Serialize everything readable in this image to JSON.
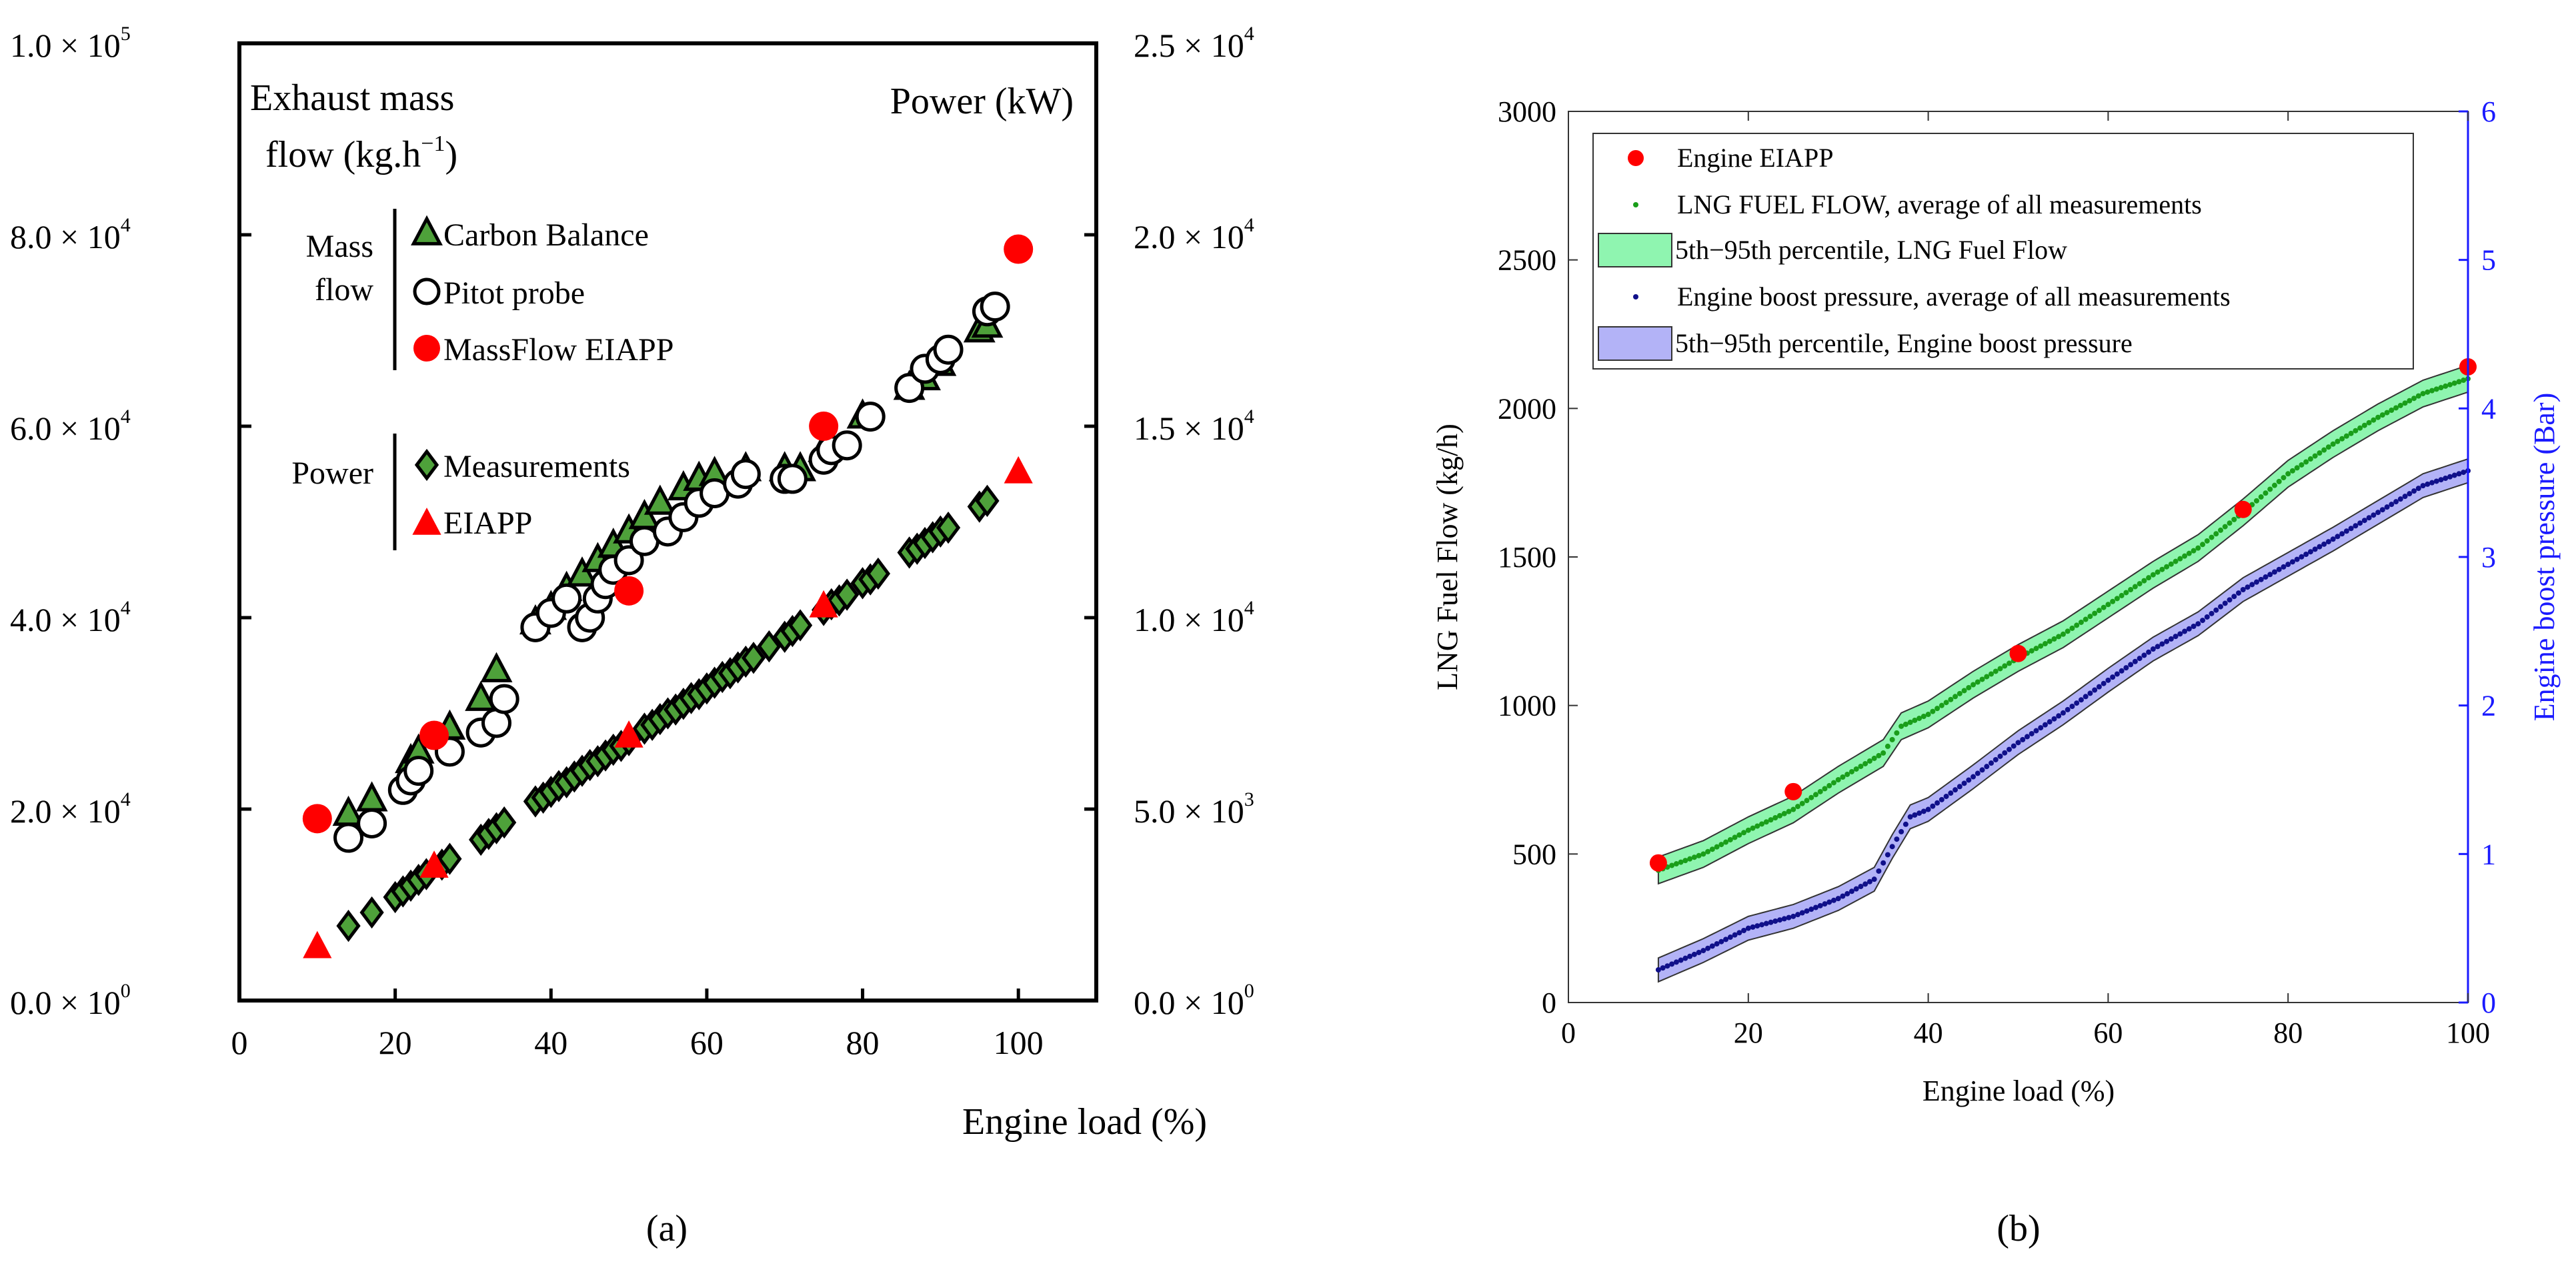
{
  "chart_data": [
    {
      "type": "scatter",
      "panel_label": "(a)",
      "xlabel": "Engine load  (%)",
      "ylabel_left": [
        "Exhaust mass",
        "flow (kg.h",
        "−1",
        ")"
      ],
      "ylabel_right": "Power (kW)",
      "xlim": [
        0,
        110
      ],
      "xticks": [
        0,
        20,
        40,
        60,
        80,
        100
      ],
      "ylim_left": [
        0,
        100000
      ],
      "yticks_left": [
        "0.0 × 10",
        "0",
        "2.0 × 10",
        "4",
        "4.0 × 10",
        "4",
        "6.0 × 10",
        "4",
        "8.0 × 10",
        "4",
        "1.0 × 10",
        "5"
      ],
      "ylim_right": [
        0,
        25000
      ],
      "yticks_right": [
        "0.0 × 10",
        "0",
        "5.0 × 10",
        "3",
        "1.0 × 10",
        "4",
        "1.5 × 10",
        "4",
        "2.0 × 10",
        "4",
        "2.5 × 10",
        "4"
      ],
      "legend_groups": [
        "Mass",
        "flow",
        "Power"
      ],
      "legend": [
        "Carbon Balance",
        "Pitot probe",
        "MassFlow EIAPP",
        "Measurements",
        "EIAPP"
      ],
      "series": [
        {
          "name": "Carbon Balance",
          "axis": "left",
          "x": [
            14,
            17,
            22,
            23,
            27,
            31,
            33,
            38,
            40,
            42,
            44,
            46,
            48,
            50,
            52,
            54,
            57,
            59,
            61,
            65,
            70,
            72,
            75,
            80,
            86,
            88,
            90,
            95,
            96
          ],
          "y": [
            19500,
            21000,
            25000,
            26000,
            28500,
            31500,
            34500,
            39500,
            41000,
            43000,
            44500,
            46000,
            47500,
            49000,
            50500,
            52000,
            53500,
            54500,
            55000,
            55500,
            55500,
            55500,
            57500,
            61000,
            64000,
            65000,
            66500,
            70000,
            70500
          ]
        },
        {
          "name": "Pitot probe",
          "axis": "left",
          "x": [
            14,
            17,
            21,
            22,
            23,
            27,
            31,
            33,
            34,
            38,
            40,
            42,
            44,
            45,
            46,
            47,
            48,
            50,
            52,
            55,
            57,
            59,
            61,
            64,
            65,
            70,
            71,
            75,
            76,
            78,
            81,
            86,
            88,
            90,
            91,
            96,
            97
          ],
          "y": [
            17000,
            18500,
            22000,
            23000,
            24000,
            26000,
            28000,
            29000,
            31500,
            39000,
            40500,
            42000,
            39000,
            40000,
            42000,
            43500,
            45000,
            46000,
            48000,
            49000,
            50500,
            52000,
            53000,
            54000,
            55000,
            54500,
            54500,
            56500,
            57500,
            58000,
            61000,
            64000,
            66000,
            67000,
            68000,
            72000,
            72500
          ]
        },
        {
          "name": "MassFlow EIAPP",
          "axis": "left",
          "x": [
            10,
            25,
            50,
            75,
            100
          ],
          "y": [
            19000,
            27700,
            42800,
            60000,
            78500
          ]
        },
        {
          "name": "Measurements",
          "axis": "right",
          "x": [
            14,
            17,
            20,
            21,
            22,
            23,
            24,
            26,
            27,
            31,
            32,
            33,
            34,
            38,
            39,
            40,
            41,
            42,
            43,
            44,
            45,
            46,
            47,
            48,
            49,
            50,
            52,
            53,
            54,
            55,
            56,
            57,
            58,
            59,
            60,
            61,
            62,
            63,
            64,
            65,
            66,
            68,
            70,
            71,
            72,
            75,
            76,
            77,
            78,
            80,
            81,
            82,
            86,
            87,
            88,
            89,
            90,
            91,
            95,
            96
          ],
          "y": [
            1950,
            2300,
            2700,
            2850,
            3000,
            3150,
            3300,
            3550,
            3700,
            4200,
            4350,
            4500,
            4650,
            5200,
            5300,
            5450,
            5600,
            5700,
            5850,
            6000,
            6150,
            6250,
            6400,
            6550,
            6650,
            6800,
            7100,
            7200,
            7350,
            7500,
            7600,
            7750,
            7900,
            8000,
            8150,
            8300,
            8450,
            8550,
            8700,
            8850,
            8950,
            9250,
            9500,
            9650,
            9800,
            10200,
            10350,
            10450,
            10600,
            10900,
            11000,
            11150,
            11700,
            11800,
            11950,
            12100,
            12250,
            12350,
            12900,
            13050
          ]
        },
        {
          "name": "EIAPP",
          "axis": "right",
          "x": [
            10,
            25,
            50,
            75,
            100
          ],
          "y": [
            1400,
            3500,
            6900,
            10300,
            13800
          ]
        }
      ]
    },
    {
      "type": "line",
      "panel_label": "(b)",
      "xlabel": "Engine load (%)",
      "ylabel_left": "LNG Fuel Flow (kg/h)",
      "ylabel_right": "Engine boost pressure (Bar)",
      "xlim": [
        0,
        100
      ],
      "xticks": [
        0,
        20,
        40,
        60,
        80,
        100
      ],
      "ylim_left": [
        0,
        3000
      ],
      "yticks_left": [
        0,
        500,
        1000,
        1500,
        2000,
        2500,
        3000
      ],
      "ylim_right": [
        0,
        6
      ],
      "yticks_right": [
        0,
        1,
        2,
        3,
        4,
        5,
        6
      ],
      "legend": [
        "Engine EIAPP",
        "LNG FUEL FLOW, average of all measurements",
        "5th−95th percentile, LNG Fuel Flow",
        "Engine boost pressure, average of all measurements",
        "5th−95th percentile, Engine boost pressure"
      ],
      "colors": {
        "eiapp": "#ff0000",
        "fuel": "#1a9e1a",
        "fuel_band": "#8ff5b0",
        "boost": "#10108a",
        "boost_band": "#b3b3f7",
        "right_axis": "#1a1aff"
      },
      "series": [
        {
          "name": "Engine EIAPP",
          "axis": "left",
          "x": [
            10,
            25,
            50,
            75,
            100
          ],
          "y": [
            470,
            710,
            1175,
            1660,
            2140
          ]
        },
        {
          "name": "LNG FUEL FLOW average",
          "axis": "left",
          "x": [
            10,
            15,
            20,
            25,
            30,
            35,
            37,
            40,
            45,
            50,
            55,
            60,
            65,
            70,
            75,
            80,
            85,
            90,
            95,
            100
          ],
          "y": [
            445,
            500,
            580,
            650,
            750,
            840,
            930,
            970,
            1070,
            1160,
            1240,
            1340,
            1440,
            1530,
            1650,
            1780,
            1880,
            1970,
            2050,
            2100
          ],
          "band": 45
        },
        {
          "name": "Engine boost pressure average",
          "axis": "right",
          "x": [
            10,
            15,
            20,
            25,
            30,
            34,
            36,
            38,
            40,
            45,
            50,
            55,
            60,
            65,
            70,
            75,
            80,
            85,
            90,
            95,
            100
          ],
          "y": [
            0.22,
            0.35,
            0.5,
            0.58,
            0.7,
            0.83,
            1.05,
            1.25,
            1.3,
            1.52,
            1.75,
            1.95,
            2.17,
            2.38,
            2.55,
            2.78,
            2.95,
            3.12,
            3.3,
            3.48,
            3.58
          ],
          "band": 0.08
        }
      ]
    }
  ]
}
